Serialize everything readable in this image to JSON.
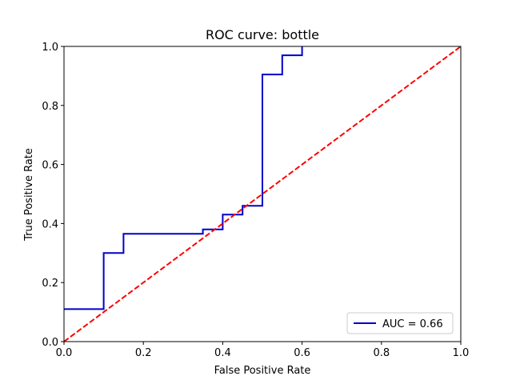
{
  "chart_data": {
    "type": "line",
    "title": "ROC curve: bottle",
    "xlabel": "False Positive Rate",
    "ylabel": "True Positive Rate",
    "xlim": [
      0.0,
      1.0
    ],
    "ylim": [
      0.0,
      1.0
    ],
    "xticks": [
      "0.0",
      "0.2",
      "0.4",
      "0.6",
      "0.8",
      "1.0"
    ],
    "yticks": [
      "0.0",
      "0.2",
      "0.4",
      "0.6",
      "0.8",
      "1.0"
    ],
    "grid": false,
    "legend_position": "lower-right",
    "series": [
      {
        "name": "AUC = 0.66",
        "color": "#0000cc",
        "style": "solid",
        "step": true,
        "x": [
          0.0,
          0.1,
          0.1,
          0.15,
          0.15,
          0.35,
          0.35,
          0.4,
          0.4,
          0.45,
          0.45,
          0.5,
          0.5,
          0.55,
          0.55,
          0.6,
          0.6
        ],
        "y": [
          0.11,
          0.11,
          0.3,
          0.3,
          0.365,
          0.365,
          0.38,
          0.38,
          0.43,
          0.43,
          0.46,
          0.46,
          0.905,
          0.905,
          0.97,
          0.97,
          1.0
        ]
      },
      {
        "name": "",
        "color": "#ff0000",
        "style": "dashed",
        "x": [
          0.0,
          1.0
        ],
        "y": [
          0.0,
          1.0
        ]
      }
    ]
  }
}
